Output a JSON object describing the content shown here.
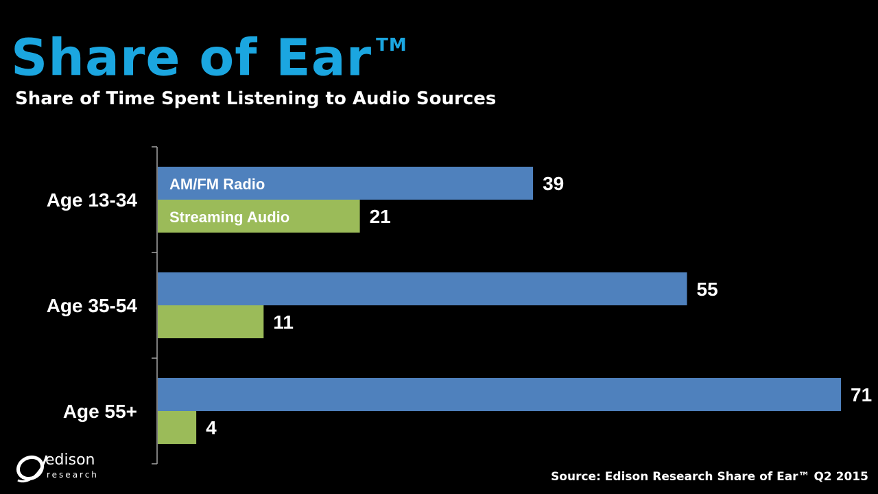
{
  "header": {
    "title": "Share of Ear",
    "title_mark": "TM",
    "subtitle": "Share of Time Spent Listening to Audio Sources"
  },
  "logo": {
    "word": "edison",
    "sub": "research"
  },
  "footer": {
    "source": "Source: Edison Research Share of Ear™ Q2 2015"
  },
  "colors": {
    "title": "#1BA6E0",
    "am_fm": "#4F81BD",
    "streaming": "#9BBB59",
    "axis": "#A6A6A6"
  },
  "chart_data": {
    "type": "bar",
    "orientation": "horizontal",
    "categories": [
      "Age 13-34",
      "Age 35-54",
      "Age 55+"
    ],
    "series": [
      {
        "name": "AM/FM Radio",
        "values": [
          39,
          55,
          71
        ],
        "color": "#4F81BD"
      },
      {
        "name": "Streaming Audio",
        "values": [
          21,
          11,
          4
        ],
        "color": "#9BBB59"
      }
    ],
    "title": "Share of Ear",
    "subtitle": "Share of Time Spent Listening to Audio Sources",
    "data_labels": true,
    "legend": "series names printed inside first group of bars",
    "grid": false
  }
}
